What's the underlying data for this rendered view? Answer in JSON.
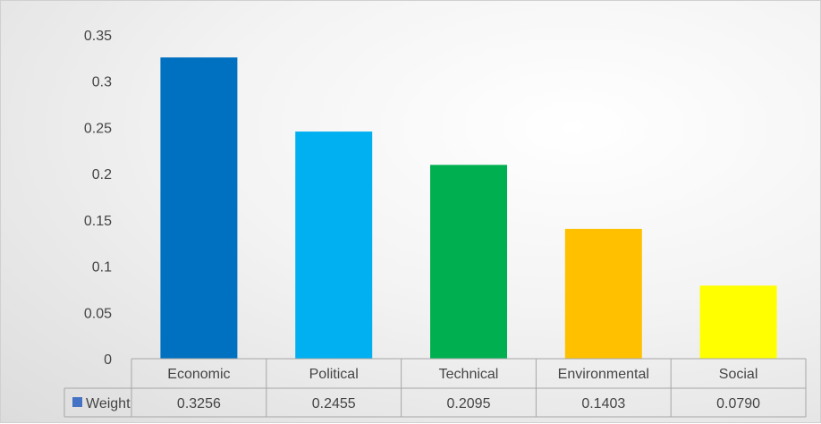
{
  "chart_data": {
    "type": "bar",
    "categories": [
      "Economic",
      "Political",
      "Technical",
      "Environmental",
      "Social"
    ],
    "series": [
      {
        "name": "Weight",
        "values": [
          0.3256,
          0.2455,
          0.2095,
          0.1403,
          0.079
        ],
        "value_labels": [
          "0.3256",
          "0.2455",
          "0.2095",
          "0.1403",
          "0.0790"
        ],
        "colors": [
          "#0070C0",
          "#00B0F0",
          "#00B050",
          "#FFC000",
          "#FFFF00"
        ],
        "legend_color": "#4472C4"
      }
    ],
    "ylim": [
      0,
      0.35
    ],
    "yticks": [
      0,
      0.05,
      0.1,
      0.15,
      0.2,
      0.25,
      0.3,
      0.35
    ],
    "ytick_labels": [
      "0",
      "0.05",
      "0.1",
      "0.15",
      "0.2",
      "0.25",
      "0.3",
      "0.35"
    ],
    "grid": false,
    "data_table": true,
    "title": "",
    "xlabel": "",
    "ylabel": ""
  }
}
